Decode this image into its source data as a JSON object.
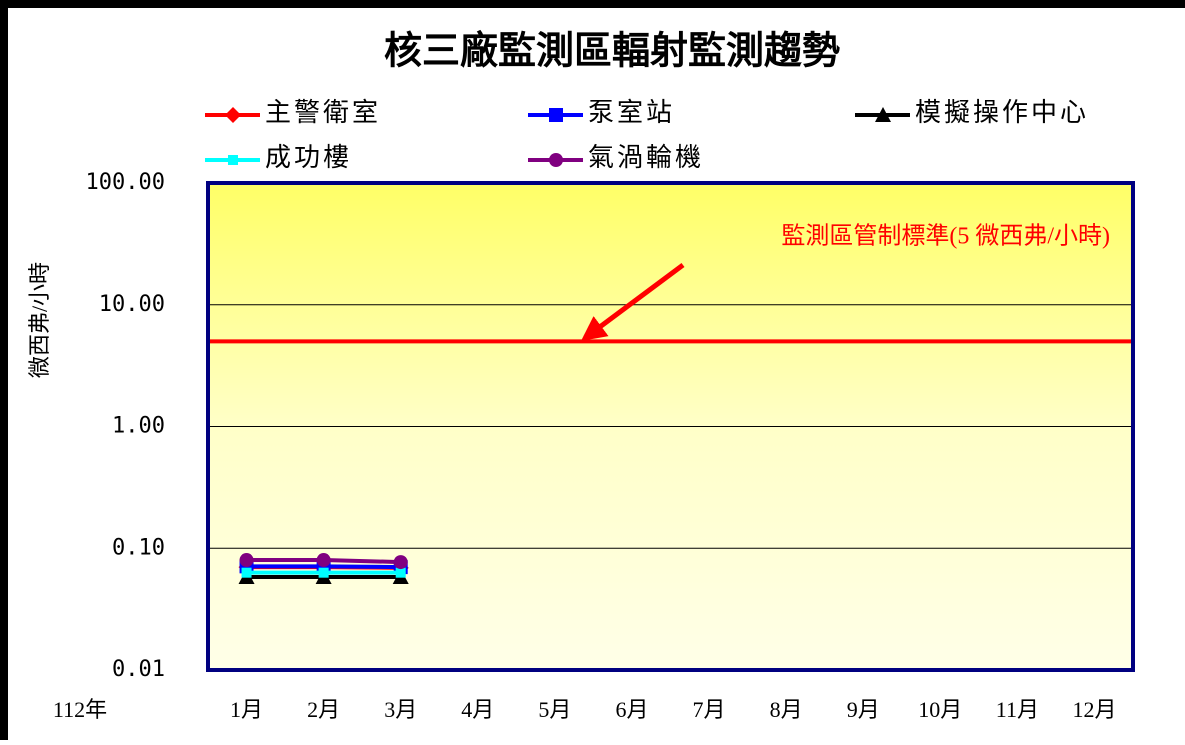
{
  "chart_data": {
    "type": "line",
    "title": "核三廠監測區輻射監測趨勢",
    "ylabel": "微西弗/小時",
    "xlabel": "112年",
    "categories": [
      "1月",
      "2月",
      "3月",
      "4月",
      "5月",
      "6月",
      "7月",
      "8月",
      "9月",
      "10月",
      "11月",
      "12月"
    ],
    "series": [
      {
        "name": "主警衛室",
        "color": "#ff0000",
        "marker": "diamond",
        "values": [
          0.07,
          0.07,
          0.069,
          null,
          null,
          null,
          null,
          null,
          null,
          null,
          null,
          null
        ]
      },
      {
        "name": "泵室站",
        "color": "#0000ff",
        "marker": "square",
        "values": [
          0.071,
          0.071,
          0.07,
          null,
          null,
          null,
          null,
          null,
          null,
          null,
          null,
          null
        ]
      },
      {
        "name": "模擬操作中心",
        "color": "#000000",
        "marker": "triangle",
        "values": [
          0.058,
          0.058,
          0.058,
          null,
          null,
          null,
          null,
          null,
          null,
          null,
          null,
          null
        ]
      },
      {
        "name": "成功樓",
        "color": "#00ffff",
        "marker": "square-small",
        "values": [
          0.063,
          0.063,
          0.063,
          null,
          null,
          null,
          null,
          null,
          null,
          null,
          null,
          null
        ]
      },
      {
        "name": "氣渦輪機",
        "color": "#800080",
        "marker": "circle",
        "values": [
          0.08,
          0.08,
          0.077,
          null,
          null,
          null,
          null,
          null,
          null,
          null,
          null,
          null
        ]
      }
    ],
    "ylim": [
      0.01,
      100
    ],
    "log_scale": true,
    "yticks": [
      {
        "value": 0.01,
        "label": "0.01"
      },
      {
        "value": 0.1,
        "label": "0.10"
      },
      {
        "value": 1,
        "label": "1.00"
      },
      {
        "value": 10,
        "label": "10.00"
      },
      {
        "value": 100,
        "label": "100.00"
      }
    ],
    "grid": true,
    "reference_line": {
      "value": 5,
      "color": "#ff0000",
      "label": "監測區管制標準(5 微西弗/小時)"
    }
  }
}
